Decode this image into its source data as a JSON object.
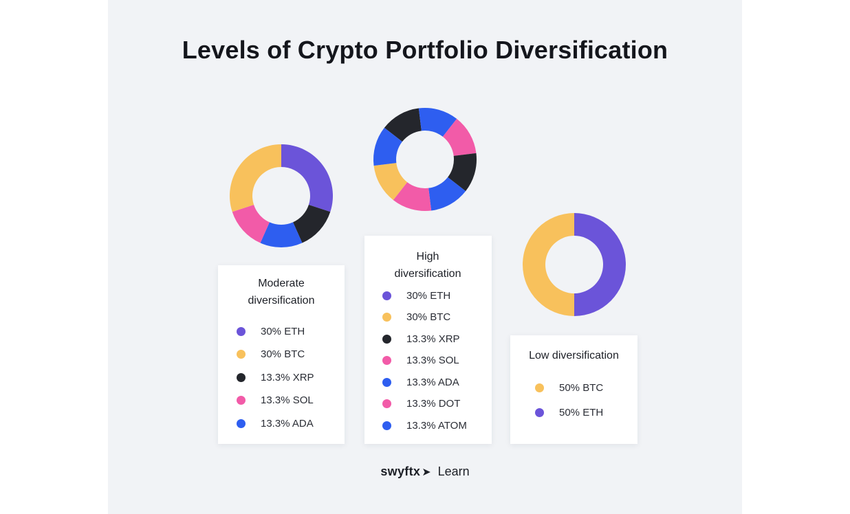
{
  "title": "Levels of Crypto Portfolio Diversification",
  "colors": {
    "eth": "#6b54d9",
    "btc": "#f8c15c",
    "xrp": "#24262c",
    "sol": "#f25ba8",
    "ada": "#2e5ef0",
    "dot": "#f25ba8",
    "atom": "#2e5ef0"
  },
  "chart_data": [
    {
      "type": "pie",
      "title": "Moderate diversification",
      "slices": [
        {
          "label": "30% ETH",
          "value": 30,
          "color": "#6b54d9"
        },
        {
          "label": "30% BTC",
          "value": 30,
          "color": "#f8c15c"
        },
        {
          "label": "13.3% XRP",
          "value": 13.3,
          "color": "#24262c"
        },
        {
          "label": "13.3% SOL",
          "value": 13.3,
          "color": "#f25ba8"
        },
        {
          "label": "13.3% ADA",
          "value": 13.3,
          "color": "#2e5ef0"
        }
      ],
      "ring_order": [
        "30% ETH",
        "13.3% XRP",
        "13.3% ADA",
        "13.3% SOL",
        "30% BTC"
      ]
    },
    {
      "type": "pie",
      "title": "High diversification",
      "slices": [
        {
          "label": "30% ETH",
          "value": 30,
          "color": "#6b54d9"
        },
        {
          "label": "30% BTC",
          "value": 30,
          "color": "#f8c15c"
        },
        {
          "label": "13.3% XRP",
          "value": 13.3,
          "color": "#24262c"
        },
        {
          "label": "13.3% SOL",
          "value": 13.3,
          "color": "#f25ba8"
        },
        {
          "label": "13.3% ADA",
          "value": 13.3,
          "color": "#2e5ef0"
        },
        {
          "label": "13.3% DOT",
          "value": 13.3,
          "color": "#f25ba8"
        },
        {
          "label": "13.3% ATOM",
          "value": 13.3,
          "color": "#2e5ef0"
        }
      ]
    },
    {
      "type": "pie",
      "title": "Low diversification",
      "slices": [
        {
          "label": "50% BTC",
          "value": 50,
          "color": "#f8c15c"
        },
        {
          "label": "50% ETH",
          "value": 50,
          "color": "#6b54d9"
        }
      ]
    }
  ],
  "footer": {
    "brand": "swyftx",
    "learn": "Learn"
  }
}
